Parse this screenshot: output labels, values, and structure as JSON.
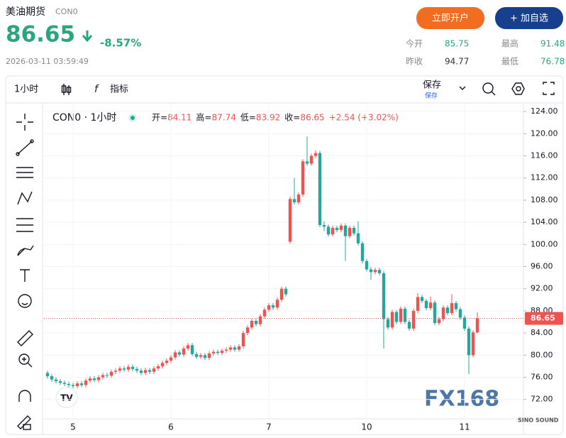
{
  "header": {
    "title": "美油期货",
    "code": "CON0",
    "price": 86.65,
    "change": "-8.57%",
    "timestamp": "2026-03-11 03:59:49",
    "buttons": [
      "立即开户",
      "+ 加自选"
    ],
    "stats": [
      {
        "label": "今开",
        "value": 85.75
      },
      {
        "label": "最高",
        "value": 91.48
      },
      {
        "label": "昨收",
        "value": 94.77
      },
      {
        "label": "最低",
        "value": 76.78
      }
    ]
  },
  "toolbar": {
    "interval": "1小时",
    "indicators": "指标",
    "save": "保存",
    "save_sub": "保存"
  },
  "chart_data": {
    "type": "candlestick",
    "title": "CON0 · 1小时",
    "ohlc_labels": [
      "开=",
      "高=",
      "低=",
      "收="
    ],
    "change_label": "+2.54 (+3.02%)",
    "categories": [
      null,
      null,
      null,
      null,
      null,
      null,
      "5",
      null,
      null,
      null,
      null,
      null,
      null,
      null,
      null,
      null,
      null,
      null,
      null,
      null,
      null,
      null,
      null,
      null,
      null,
      null,
      null,
      null,
      null,
      "6",
      null,
      null,
      null,
      null,
      null,
      null,
      null,
      null,
      null,
      null,
      null,
      null,
      null,
      null,
      null,
      null,
      null,
      null,
      null,
      null,
      null,
      null,
      "7",
      null,
      null,
      null,
      null,
      null,
      null,
      null,
      null,
      null,
      null,
      null,
      null,
      null,
      null,
      null,
      null,
      null,
      null,
      null,
      null,
      null,
      null,
      "10",
      null,
      null,
      null,
      null,
      null,
      null,
      null,
      null,
      null,
      null,
      null,
      null,
      null,
      null,
      null,
      null,
      null,
      null,
      null,
      null,
      null,
      null,
      "11",
      null,
      null,
      null
    ],
    "open": [
      76.8,
      76.2,
      75.6,
      75.3,
      75.0,
      74.8,
      74.6,
      74.4,
      74.9,
      74.6,
      75.4,
      75.8,
      75.5,
      76.0,
      76.4,
      76.3,
      77.0,
      77.2,
      77.6,
      77.4,
      77.9,
      77.5,
      77.2,
      76.8,
      77.3,
      77.0,
      77.6,
      78.0,
      78.6,
      79.0,
      79.6,
      80.5,
      80.1,
      81.2,
      81.8,
      80.2,
      79.7,
      80.0,
      79.5,
      80.3,
      80.6,
      80.4,
      80.8,
      81.0,
      81.4,
      81.0,
      81.6,
      84.0,
      85.0,
      86.2,
      85.6,
      87.0,
      88.2,
      89.0,
      88.6,
      90.0,
      92.0,
      100.5,
      108.2,
      107.6,
      109.0,
      115.0,
      114.6,
      116.0,
      116.5,
      103.5,
      103.2,
      101.8,
      103.0,
      102.6,
      103.4,
      101.5,
      103.0,
      102.0,
      100.2,
      97.0,
      95.5,
      95.0,
      95.4,
      94.8,
      86.5,
      85.0,
      87.8,
      86.0,
      88.4,
      86.0,
      84.8,
      88.0,
      90.5,
      89.8,
      88.5,
      89.5,
      85.8,
      86.5,
      88.6,
      87.6,
      89.4,
      88.3,
      86.8,
      84.8,
      80.0,
      84.11
    ],
    "high": [
      77.2,
      76.6,
      76.0,
      75.7,
      75.4,
      75.2,
      75.0,
      75.3,
      75.3,
      75.8,
      76.2,
      76.2,
      76.4,
      76.8,
      76.8,
      77.4,
      77.6,
      78.0,
      78.0,
      78.3,
      78.3,
      77.9,
      77.6,
      77.7,
      77.7,
      78.0,
      78.4,
      79.0,
      79.4,
      80.0,
      80.9,
      80.9,
      81.6,
      82.2,
      82.2,
      80.6,
      80.4,
      80.4,
      80.7,
      81.0,
      81.0,
      81.2,
      81.4,
      81.8,
      81.8,
      82.0,
      84.4,
      85.4,
      86.6,
      86.6,
      87.4,
      88.6,
      89.4,
      89.4,
      90.4,
      92.4,
      92.4,
      108.6,
      112.0,
      109.4,
      115.4,
      119.5,
      116.4,
      117.0,
      116.9,
      104.2,
      103.6,
      103.4,
      103.4,
      103.8,
      103.8,
      103.4,
      103.4,
      104.2,
      100.6,
      97.4,
      95.9,
      95.8,
      95.8,
      95.2,
      86.9,
      88.2,
      88.2,
      88.8,
      88.8,
      86.4,
      88.4,
      91.2,
      90.9,
      90.2,
      90.6,
      89.9,
      86.9,
      89.0,
      89.0,
      91.0,
      89.8,
      88.7,
      87.2,
      85.2,
      84.5,
      87.74
    ],
    "low": [
      75.8,
      75.2,
      74.9,
      74.6,
      74.4,
      74.2,
      74.0,
      74.0,
      74.2,
      74.2,
      75.0,
      75.1,
      75.1,
      75.6,
      75.9,
      75.9,
      76.6,
      76.8,
      77.0,
      77.0,
      77.1,
      76.8,
      76.4,
      76.4,
      76.6,
      76.6,
      77.2,
      77.6,
      78.2,
      78.6,
      79.2,
      79.7,
      79.7,
      80.8,
      79.8,
      79.3,
      79.3,
      79.1,
      79.1,
      79.9,
      80.0,
      80.0,
      80.4,
      80.6,
      80.6,
      80.6,
      81.2,
      83.6,
      84.6,
      85.2,
      85.2,
      86.6,
      87.8,
      88.2,
      88.2,
      89.6,
      90.6,
      100.1,
      107.2,
      107.2,
      108.6,
      114.2,
      114.2,
      115.6,
      103.1,
      102.4,
      101.4,
      101.4,
      102.2,
      102.2,
      97.0,
      101.1,
      101.6,
      99.8,
      96.6,
      95.1,
      93.6,
      94.6,
      94.4,
      81.2,
      84.6,
      84.6,
      85.6,
      85.6,
      85.6,
      84.4,
      84.4,
      87.6,
      89.4,
      88.1,
      88.1,
      85.4,
      85.4,
      86.1,
      87.2,
      87.2,
      87.9,
      86.4,
      84.4,
      76.6,
      79.6,
      83.92
    ],
    "close": [
      76.2,
      75.6,
      75.3,
      75.0,
      74.8,
      74.6,
      74.4,
      74.9,
      74.6,
      75.4,
      75.8,
      75.5,
      76.0,
      76.4,
      76.3,
      77.0,
      77.2,
      77.6,
      77.4,
      77.9,
      77.5,
      77.2,
      76.8,
      77.3,
      77.0,
      77.6,
      78.0,
      78.6,
      79.0,
      79.6,
      80.5,
      80.1,
      81.2,
      81.8,
      80.2,
      79.7,
      80.0,
      79.5,
      80.3,
      80.6,
      80.4,
      80.8,
      81.0,
      81.4,
      81.0,
      81.6,
      84.0,
      85.0,
      86.2,
      85.6,
      87.0,
      88.2,
      89.0,
      88.6,
      90.0,
      92.0,
      91.0,
      108.2,
      107.6,
      109.0,
      115.0,
      114.6,
      116.0,
      116.5,
      103.5,
      103.2,
      101.8,
      103.0,
      102.6,
      103.4,
      101.5,
      103.0,
      102.0,
      100.2,
      97.0,
      95.5,
      95.0,
      95.4,
      94.8,
      86.5,
      85.0,
      87.8,
      86.0,
      88.4,
      86.0,
      84.8,
      88.0,
      90.5,
      89.8,
      88.5,
      89.5,
      85.8,
      86.5,
      88.6,
      87.6,
      89.4,
      88.3,
      86.8,
      84.8,
      80.0,
      84.11,
      86.65
    ],
    "up_color": "#ef5350",
    "down_color": "#26a69a",
    "ylim": [
      68.5,
      125.3
    ],
    "yticks": [
      {
        "value": 72,
        "label": "72.00"
      },
      {
        "value": 76,
        "label": "76.00"
      },
      {
        "value": 80,
        "label": "80.00"
      },
      {
        "value": 84,
        "label": "84.00"
      },
      {
        "value": 88,
        "label": "88.00"
      },
      {
        "value": 92,
        "label": "92.00"
      },
      {
        "value": 96,
        "label": "96.00"
      },
      {
        "value": 100,
        "label": "100.00"
      },
      {
        "value": 104,
        "label": "104.00"
      },
      {
        "value": 108,
        "label": "108.00"
      },
      {
        "value": 112,
        "label": "112.00"
      },
      {
        "value": 116,
        "label": "116.00"
      },
      {
        "value": 120,
        "label": "120.00"
      },
      {
        "value": 124,
        "label": "124.00"
      }
    ],
    "grid": true
  },
  "logo": "FX168",
  "badge": "SINO SOUND"
}
